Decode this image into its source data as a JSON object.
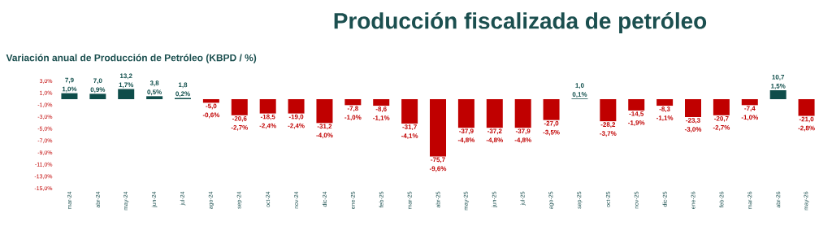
{
  "chart_data": {
    "type": "bar",
    "title": "Producción fiscalizada de petróleo",
    "subtitle": "Variación anual de Producción de Petróleo (KBPD / %)",
    "categories": [
      "mar-24",
      "abr-24",
      "may-24",
      "jun-24",
      "jul-24",
      "ago-24",
      "sep-24",
      "oct-24",
      "nov-24",
      "dic-24",
      "ene-25",
      "feb-25",
      "mar-25",
      "abr-25",
      "may-25",
      "jun-25",
      "jul-25",
      "ago-25",
      "sep-25",
      "oct-25",
      "nov-25",
      "dic-25",
      "ene-26",
      "feb-26",
      "mar-26",
      "abr-26",
      "may-26"
    ],
    "values": [
      1.0,
      0.9,
      1.7,
      0.5,
      0.2,
      -0.6,
      -2.7,
      -2.4,
      -2.4,
      -4.0,
      -1.0,
      -1.1,
      -4.1,
      -9.6,
      -4.8,
      -4.8,
      -4.8,
      -3.5,
      0.1,
      -3.7,
      -1.9,
      -1.1,
      -3.0,
      -2.7,
      -1.0,
      1.5,
      -2.8
    ],
    "colors": [
      "#0e4d4a",
      "#0e4d4a",
      "#0e4d4a",
      "#0e4d4a",
      "#0e4d4a",
      "#c00000",
      "#c00000",
      "#c00000",
      "#c00000",
      "#c00000",
      "#c00000",
      "#c00000",
      "#c00000",
      "#c00000",
      "#c00000",
      "#c00000",
      "#c00000",
      "#c00000",
      "#0e4d4a",
      "#c00000",
      "#c00000",
      "#c00000",
      "#c00000",
      "#c00000",
      "#c00000",
      "#0e4d4a",
      "#c00000"
    ],
    "value_labels": [
      "1,0%",
      "0,9%",
      "1,7%",
      "0,5%",
      "0,2%",
      "-0,6%",
      "-2,7%",
      "-2,4%",
      "-2,4%",
      "-4,0%",
      "-1,0%",
      "-1,1%",
      "-4,1%",
      "-9,6%",
      "-4,8%",
      "-4,8%",
      "-4,8%",
      "-3,5%",
      "0,1%",
      "-3,7%",
      "-1,9%",
      "-1,1%",
      "-3,0%",
      "-2,7%",
      "-1,0%",
      "1,5%",
      "-2,8%"
    ],
    "annotations": [
      {
        "text": "7,9",
        "x": "mar-24",
        "y": 1.0
      },
      {
        "text": "7,0",
        "x": "abr-24",
        "y": 0.9
      },
      {
        "text": "13,2",
        "x": "may-24",
        "y": 1.7
      },
      {
        "text": "3,8",
        "x": "jun-24",
        "y": 0.5
      },
      {
        "text": "1,8",
        "x": "jul-24",
        "y": 0.2
      },
      {
        "text": "-5,0",
        "x": "ago-24",
        "y": -0.6
      },
      {
        "text": "-20,6",
        "x": "sep-24",
        "y": -2.7
      },
      {
        "text": "-18,5",
        "x": "oct-24",
        "y": -2.4
      },
      {
        "text": "-19,0",
        "x": "nov-24",
        "y": -2.4
      },
      {
        "text": "-31,2",
        "x": "dic-24",
        "y": -4.0
      },
      {
        "text": "-7,8",
        "x": "ene-25",
        "y": -1.0
      },
      {
        "text": "-8,6",
        "x": "feb-25",
        "y": -1.1
      },
      {
        "text": "-31,7",
        "x": "mar-25",
        "y": -4.1
      },
      {
        "text": "-75,7",
        "x": "abr-25",
        "y": -9.6
      },
      {
        "text": "-37,9",
        "x": "may-25",
        "y": -4.8
      },
      {
        "text": "-37,2",
        "x": "jun-25",
        "y": -4.8
      },
      {
        "text": "-37,9",
        "x": "jul-25",
        "y": -4.8
      },
      {
        "text": "-27,0",
        "x": "ago-25",
        "y": -3.5
      },
      {
        "text": "1,0",
        "x": "sep-25",
        "y": 0.1
      },
      {
        "text": "-28,2",
        "x": "oct-25",
        "y": -3.7
      },
      {
        "text": "-14,5",
        "x": "nov-25",
        "y": -1.9
      },
      {
        "text": "-8,3",
        "x": "dic-25",
        "y": -1.1
      },
      {
        "text": "-23,3",
        "x": "ene-26",
        "y": -3.0
      },
      {
        "text": "-20,7",
        "x": "feb-26",
        "y": -2.7
      },
      {
        "text": "-7,4",
        "x": "mar-26",
        "y": -1.0
      },
      {
        "text": "10,7",
        "x": "abr-26",
        "y": 1.5
      },
      {
        "text": "-21,0",
        "x": "may-26",
        "y": -2.8
      }
    ],
    "ylim": [
      -15,
      3
    ],
    "yticks": [
      {
        "value": 3,
        "label": "3,0%"
      },
      {
        "value": 1,
        "label": "1,0%"
      },
      {
        "value": -1,
        "label": "-1,0%"
      },
      {
        "value": -3,
        "label": "-3,0%"
      },
      {
        "value": -5,
        "label": "-5,0%"
      },
      {
        "value": -7,
        "label": "-7,0%"
      },
      {
        "value": -9,
        "label": "-9,0%"
      },
      {
        "value": -11,
        "label": "-11,0%"
      },
      {
        "value": -13,
        "label": "-13,0%"
      },
      {
        "value": -15,
        "label": "-15,0%"
      }
    ]
  }
}
